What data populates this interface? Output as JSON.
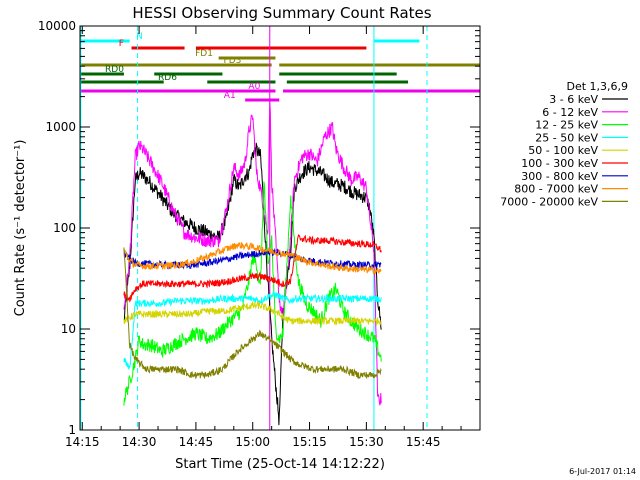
{
  "chart_data": {
    "type": "line",
    "title": "HESSI Observing Summary Count Rates",
    "xlabel": "Start Time (25-Oct-14 14:12:22)",
    "ylabel": "Count Rate (s⁻¹ detector⁻¹)",
    "footer": "6-Jul-2017 01:14",
    "legend_title": "Det 1,3,6,9",
    "legend_placement": "right",
    "xrange_minutes": [
      14.4,
      120
    ],
    "x_ticks": [
      {
        "m": 15,
        "label": "14:15"
      },
      {
        "m": 30,
        "label": "14:30"
      },
      {
        "m": 45,
        "label": "14:45"
      },
      {
        "m": 60,
        "label": "15:00"
      },
      {
        "m": 75,
        "label": "15:15"
      },
      {
        "m": 90,
        "label": "15:30"
      },
      {
        "m": 105,
        "label": "15:45"
      }
    ],
    "ylog": true,
    "ylim": [
      1,
      10000
    ],
    "y_ticks": [
      {
        "v": 1,
        "label": "1"
      },
      {
        "v": 10,
        "label": "10"
      },
      {
        "v": 100,
        "label": "100"
      },
      {
        "v": 1000,
        "label": "1000"
      },
      {
        "v": 10000,
        "label": "10000"
      }
    ],
    "series": [
      {
        "name": "3 - 6 keV",
        "color": "#000000",
        "x": [
          26,
          27.5,
          29,
          30,
          31,
          33,
          36,
          39,
          42,
          45,
          48,
          51,
          53,
          55,
          56.5,
          58,
          59,
          60,
          61,
          62,
          62.5,
          63.5,
          64.5,
          65,
          66,
          67,
          68,
          70,
          71,
          73,
          75,
          78,
          81,
          84,
          87,
          90,
          91,
          92,
          93,
          94
        ],
        "y": [
          12,
          40,
          300,
          350,
          330,
          280,
          200,
          140,
          115,
          100,
          90,
          80,
          120,
          300,
          250,
          330,
          350,
          550,
          600,
          520,
          300,
          60,
          15,
          8,
          3,
          1.2,
          15,
          60,
          250,
          350,
          400,
          350,
          280,
          260,
          220,
          200,
          150,
          80,
          20,
          10
        ]
      },
      {
        "name": "6 - 12 keV",
        "color": "#ff00ff",
        "x": [
          26,
          27.5,
          29,
          30,
          31,
          33,
          36,
          39,
          42,
          45,
          48,
          51,
          53,
          55,
          56.5,
          58,
          59,
          60,
          61,
          62,
          63,
          64,
          64.5,
          65,
          66,
          67,
          68,
          70,
          71,
          73,
          75,
          77,
          79,
          81,
          82,
          84,
          86,
          88,
          90,
          91,
          92,
          93,
          94
        ],
        "y": [
          15,
          50,
          500,
          650,
          600,
          450,
          280,
          150,
          90,
          80,
          75,
          75,
          150,
          400,
          330,
          450,
          900,
          1300,
          350,
          250,
          150,
          80,
          2200,
          300,
          80,
          20,
          12,
          80,
          300,
          500,
          550,
          450,
          800,
          1000,
          600,
          400,
          300,
          320,
          250,
          120,
          60,
          2,
          2
        ]
      },
      {
        "name": "12 - 25 keV",
        "color": "#00ff00",
        "x": [
          26,
          27.5,
          29,
          30,
          31,
          33,
          36,
          39,
          42,
          45,
          48,
          51,
          54,
          57,
          59,
          60,
          61,
          62,
          63,
          64,
          65,
          66,
          67,
          68,
          70,
          72,
          74,
          76,
          78,
          80,
          82,
          84,
          86,
          88,
          90,
          92,
          94
        ],
        "y": [
          2,
          3,
          5,
          8,
          7,
          7,
          6,
          7,
          8,
          9,
          8,
          9,
          12,
          15,
          30,
          50,
          45,
          25,
          300,
          40,
          80,
          10,
          8,
          9,
          200,
          30,
          18,
          15,
          12,
          20,
          25,
          15,
          12,
          10,
          9,
          8,
          5
        ]
      },
      {
        "name": "25 - 50 keV",
        "color": "#00ffff",
        "x": [
          26,
          27.5,
          29,
          32,
          36,
          40,
          44,
          48,
          52,
          56,
          60,
          62,
          64,
          66,
          68,
          70,
          71,
          73,
          76,
          80,
          84,
          88,
          92,
          94
        ],
        "y": [
          5,
          4,
          18,
          18,
          18,
          19,
          19,
          19,
          20,
          20,
          20,
          19,
          21,
          22,
          20,
          19,
          20,
          20,
          20,
          20,
          20,
          20,
          20,
          20
        ]
      },
      {
        "name": "50 - 100 keV",
        "color": "#d4d400",
        "x": [
          26,
          27.5,
          29,
          32,
          36,
          40,
          44,
          48,
          52,
          56,
          60,
          62,
          64,
          66,
          68,
          70,
          72,
          76,
          80,
          84,
          88,
          92,
          94
        ],
        "y": [
          12,
          13,
          14,
          14,
          14,
          14,
          14,
          15,
          15,
          16,
          17,
          17,
          16,
          15,
          13,
          12,
          12,
          12,
          12,
          12,
          12,
          12,
          12
        ]
      },
      {
        "name": "100 - 300 keV",
        "color": "#ff0000",
        "x": [
          26,
          27.5,
          29,
          31,
          34,
          38,
          42,
          46,
          48,
          52,
          56,
          60,
          62,
          64,
          66,
          68,
          70,
          72,
          76,
          80,
          84,
          88,
          92,
          94
        ],
        "y": [
          22,
          20,
          25,
          28,
          28,
          28,
          28,
          28,
          28,
          29,
          31,
          33,
          33,
          32,
          30,
          28,
          30,
          80,
          75,
          75,
          72,
          70,
          68,
          60
        ]
      },
      {
        "name": "300 - 800 keV",
        "color": "#0000cc",
        "x": [
          26,
          27.5,
          29,
          32,
          36,
          40,
          44,
          48,
          52,
          56,
          60,
          64,
          68,
          70,
          72,
          76,
          80,
          84,
          88,
          92,
          94
        ],
        "y": [
          55,
          50,
          45,
          44,
          43,
          43,
          43,
          45,
          48,
          52,
          55,
          58,
          56,
          54,
          50,
          47,
          45,
          44,
          43,
          43,
          44
        ]
      },
      {
        "name": "800 - 7000 keV",
        "color": "#ff8c00",
        "x": [
          26,
          27.5,
          29,
          32,
          36,
          40,
          44,
          48,
          52,
          56,
          60,
          64,
          68,
          70,
          72,
          76,
          80,
          84,
          88,
          92,
          94
        ],
        "y": [
          60,
          48,
          43,
          42,
          42,
          43,
          46,
          52,
          60,
          68,
          65,
          60,
          56,
          54,
          50,
          45,
          42,
          40,
          39,
          38,
          37
        ]
      },
      {
        "name": "7000 - 20000 keV",
        "color": "#808000",
        "x": [
          26,
          27.5,
          29,
          32,
          36,
          40,
          44,
          48,
          52,
          56,
          60,
          62,
          64,
          66,
          68,
          70,
          72,
          76,
          80,
          84,
          88,
          92,
          94
        ],
        "y": [
          65,
          7,
          5,
          4,
          4,
          4,
          3.5,
          3.5,
          4,
          6,
          8,
          9,
          8,
          7,
          6,
          5,
          4.5,
          4,
          4,
          4,
          3.5,
          3.5,
          4
        ]
      }
    ],
    "flag_bars": [
      {
        "label": "N",
        "color": "#00ffff",
        "row": 0,
        "label_at": 31,
        "segments": [
          [
            14.4,
            27.5
          ],
          [
            92,
            104
          ]
        ]
      },
      {
        "label": "F",
        "color": "#ee0000",
        "row": 1,
        "label_at": 26,
        "segments": [
          [
            28,
            42
          ],
          [
            45,
            90
          ]
        ]
      },
      {
        "label": "FD1",
        "color": "#808000",
        "row": 2,
        "label_at": 49.5,
        "segments": [
          [
            51,
            66
          ]
        ]
      },
      {
        "label": "FD3",
        "color": "#808000",
        "row": 3,
        "label_at": 57,
        "segments": [
          [
            14.4,
            65
          ],
          [
            67,
            120
          ]
        ]
      },
      {
        "label": "RD0",
        "color": "#006400",
        "row": 4,
        "label_at": 26,
        "segments": [
          [
            14.4,
            26
          ],
          [
            34,
            52
          ],
          [
            67,
            98
          ]
        ]
      },
      {
        "label": "RD6",
        "color": "#006400",
        "row": 5,
        "label_at": 40,
        "segments": [
          [
            14.4,
            36.5
          ],
          [
            48,
            66
          ],
          [
            69,
            101
          ]
        ]
      },
      {
        "label": "A0",
        "color": "#ee00ee",
        "row": 6,
        "label_at": 62,
        "segments": [
          [
            14.4,
            66
          ],
          [
            68,
            120
          ]
        ]
      },
      {
        "label": "A1",
        "color": "#ee00ee",
        "row": 7,
        "label_at": 55.5,
        "segments": [
          [
            58,
            67
          ]
        ]
      }
    ],
    "vertical_markers": [
      {
        "x": 14.6,
        "color": "#00ffff",
        "style": "solid"
      },
      {
        "x": 29.6,
        "color": "#00ffff",
        "style": "dash"
      },
      {
        "x": 92,
        "color": "#00ffff",
        "style": "solid"
      },
      {
        "x": 106,
        "color": "#00ffff",
        "style": "dash"
      },
      {
        "x": 64.5,
        "color": "#ee00ee",
        "style": "solid"
      }
    ]
  }
}
